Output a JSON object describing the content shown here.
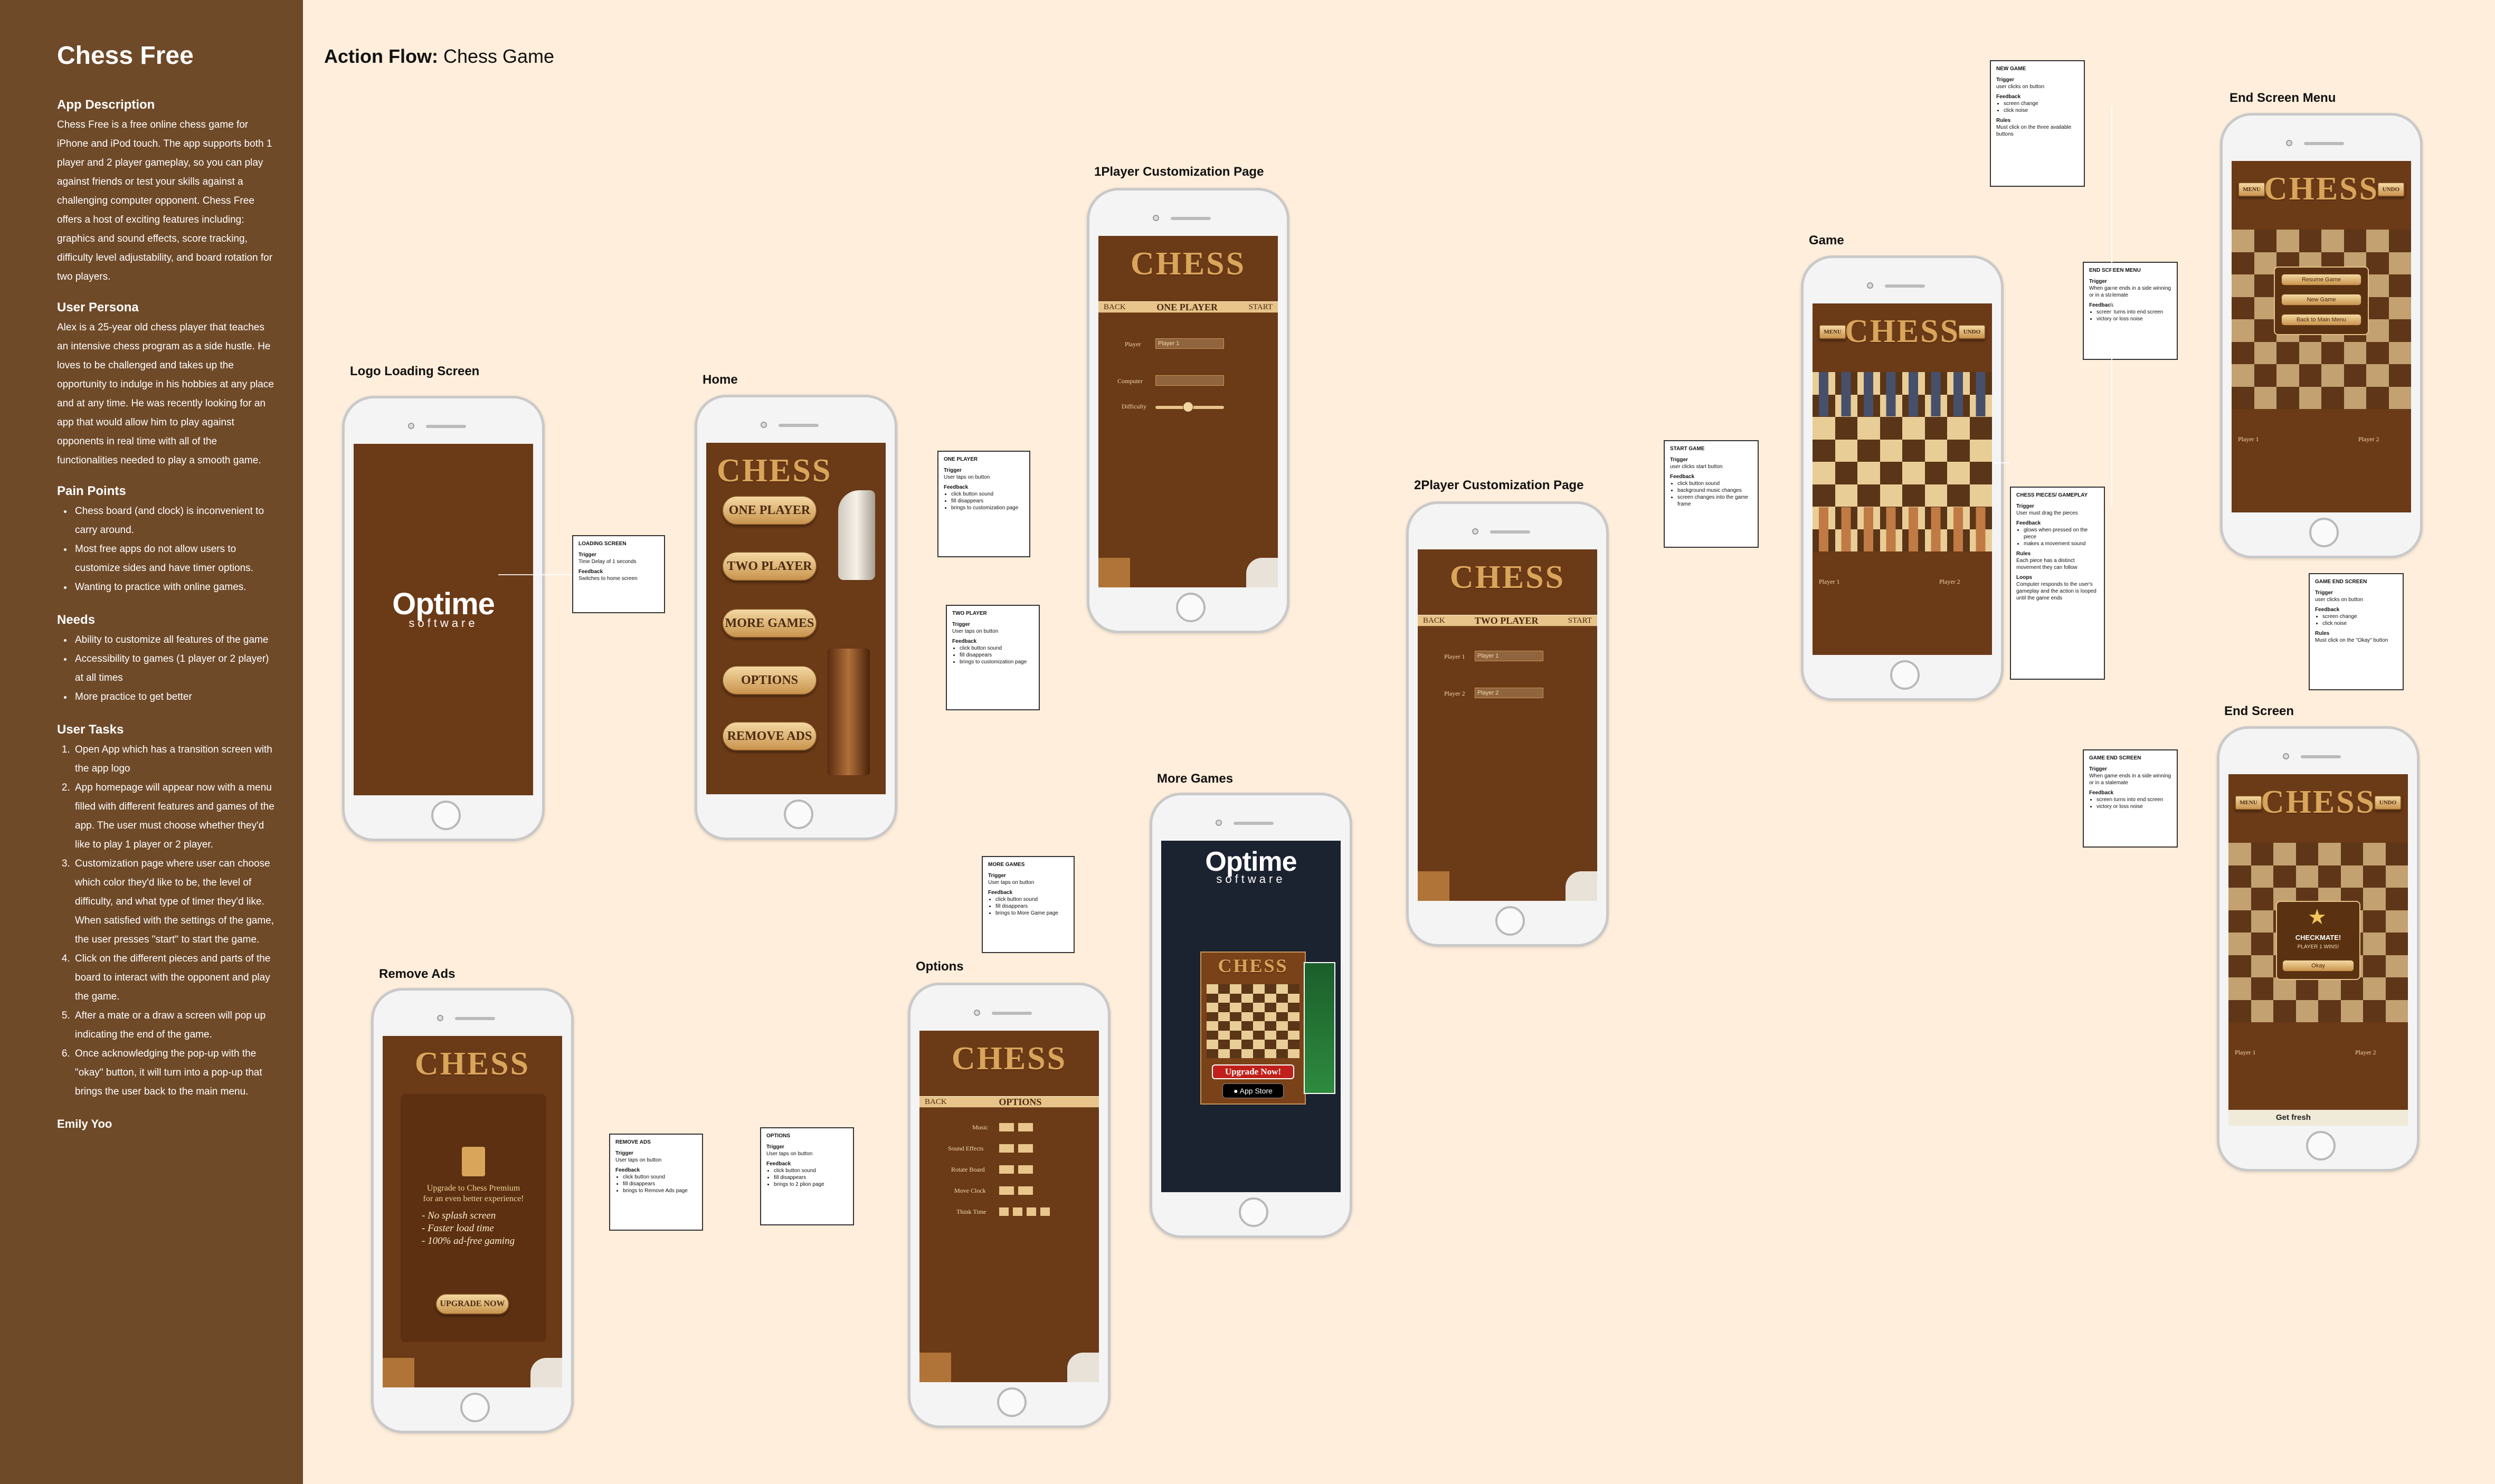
{
  "sidebar": {
    "title": "Chess Free",
    "app_description_heading": "App Description",
    "app_description": "Chess Free is a free online chess game for iPhone and iPod touch. The app supports both 1 player and 2 player gameplay, so you can play against friends or test your skills against a challenging computer opponent. Chess Free offers a host of exciting features including: graphics and sound effects, score tracking, difficulty level adjustability, and board rotation for two players.",
    "persona_heading": "User Persona",
    "persona": "Alex is a 25-year old chess player that teaches an intensive chess program as a side hustle. He loves to be challenged and takes up the opportunity to indulge in his hobbies at any place and at any time. He was recently looking for an app that would allow him to play against opponents in real time with all of the functionalities needed to play a smooth game.",
    "pain_heading": "Pain Points",
    "pain_points": [
      "Chess board (and clock) is inconvenient to carry around.",
      "Most free apps do not allow users to customize sides and have timer options.",
      "Wanting to practice with online games."
    ],
    "needs_heading": "Needs",
    "needs": [
      "Ability to customize all features of the game",
      "Accessibility to games (1 player or 2 player) at all times",
      "More practice to get better"
    ],
    "tasks_heading": "User Tasks",
    "tasks": [
      "Open App which has a transition screen with the app logo",
      "App homepage will appear now with a menu filled with different features and games of the app. The user must choose whether they'd like to play 1 player or 2 player.",
      "Customization page where user can choose which color they'd like to be, the level of difficulty, and what type of timer they'd like. When satisfied with the settings of the game, the user presses \"start\" to start the game.",
      "Click on the different pieces and parts of the board to interact with the opponent and play the game.",
      "After a mate or a draw a screen will pop up indicating the end of the game.",
      "Once acknowledging the pop-up with the \"okay\" button, it will turn into a pop-up that brings the user back to the main menu."
    ],
    "author": "Emily Yoo"
  },
  "flow": {
    "title_bold": "Action Flow:",
    "title_rest": "Chess Game"
  },
  "screens": {
    "logo": "Logo Loading Screen",
    "home": "Home",
    "p1": "1Player Customization Page",
    "p2": "2Player Customization Page",
    "more": "More Games",
    "options": "Options",
    "remove": "Remove Ads",
    "game": "Game",
    "endmenu": "End Screen Menu",
    "end": "End Screen"
  },
  "ui": {
    "optime": "Optime",
    "software": "software",
    "chess": "CHESS",
    "home_buttons": [
      "ONE PLAYER",
      "TWO PLAYER",
      "MORE GAMES",
      "OPTIONS",
      "REMOVE ADS"
    ],
    "back": "BACK",
    "start": "START",
    "one_player": "ONE PLAYER",
    "two_player": "TWO PLAYER",
    "options_bar": "OPTIONS",
    "player_lbl": "Player",
    "computer_lbl": "Computer",
    "difficulty_lbl": "Difficulty",
    "player1": "Player 1",
    "player2": "Player 2",
    "opt_rows": [
      "Music",
      "Sound Effects",
      "Rotate Board",
      "Move Clock",
      "Think Time"
    ],
    "menu": "MENU",
    "undo": "UNDO",
    "upgrade_now": "Upgrade Now!",
    "app_store": "App Store",
    "premium_line1": "Upgrade to Chess Premium",
    "premium_line2": "for an even better experience!",
    "premium_bullets": [
      "- No splash screen",
      "- Faster load time",
      "- 100% ad-free gaming"
    ],
    "upgrade_btn": "UPGRADE NOW",
    "resume": "Resume Game",
    "new_game": "New Game",
    "back_main": "Back to Main Menu",
    "checkmate": "CHECKMATE!",
    "player_wins": "PLAYER 1 WINS!",
    "okay": "Okay",
    "get_fresh": "Get fresh"
  },
  "notes": {
    "loading": {
      "title": "LOADING SCREEN",
      "trigger": "Time Delay of 1 seconds",
      "feedback": "Switches to home screen"
    },
    "one_player": {
      "title": "ONE PLAYER",
      "trigger": "User taps on button",
      "feedback": [
        "click button sound",
        "fill disappears",
        "brings to customization page"
      ]
    },
    "two_player": {
      "title": "TWO PLAYER",
      "trigger": "User taps on button",
      "feedback": [
        "click button sound",
        "fill disappears",
        "brings to customization page"
      ]
    },
    "more_games": {
      "title": "MORE GAMES",
      "trigger": "User taps on button",
      "feedback": [
        "click button sound",
        "fill disappears",
        "brings to More Game page"
      ]
    },
    "remove_ads": {
      "title": "REMOVE ADS",
      "trigger": "User taps on button",
      "feedback": [
        "click button sound",
        "fill disappears",
        "brings to Remove Ads page"
      ]
    },
    "options": {
      "title": "OPTIONS",
      "trigger": "User taps on button",
      "feedback": [
        "click button sound",
        "fill disappears",
        "brings to 2 plion page"
      ]
    },
    "start_game": {
      "title": "START GAME",
      "trigger": "user clicks start button",
      "feedback": [
        "click button sound",
        "background music changes",
        "screen changes into the game frame"
      ]
    },
    "new_game": {
      "title": "NEW GAME",
      "trigger": "user clicks on button",
      "feedback": [
        "screen change",
        "click noise"
      ],
      "rules": "Must click on the three available buttons"
    },
    "end_menu": {
      "title": "END SCREEN MENU",
      "trigger": "When game ends in a side winning or in a stalemate",
      "feedback": [
        "screen turns into end screen",
        "victory or loss noise"
      ]
    },
    "pieces": {
      "title": "CHESS PIECES/ GAMEPLAY",
      "trigger": "User must drag the pieces",
      "feedback": [
        "glows when pressed on the piece",
        "makes a movement sound"
      ],
      "rules": "Each piece has a distinct movement they can follow",
      "loops": "Computer responds to the user's gameplay and the action is looped until the game ends"
    },
    "game_end": {
      "title": "GAME END SCREEN",
      "trigger": "When game ends in a side winning or in a stalemate",
      "feedback": [
        "screen turns into end screen",
        "victory or loss noise"
      ]
    },
    "game_end2": {
      "title": "GAME END SCREEN",
      "trigger": "user clicks on button",
      "feedback": [
        "screen change",
        "click noise"
      ],
      "rules": "Must click on the \"Okay\" button"
    }
  },
  "labels": {
    "trigger": "Trigger",
    "feedback": "Feedback",
    "rules": "Rules",
    "loops": "Loops"
  }
}
